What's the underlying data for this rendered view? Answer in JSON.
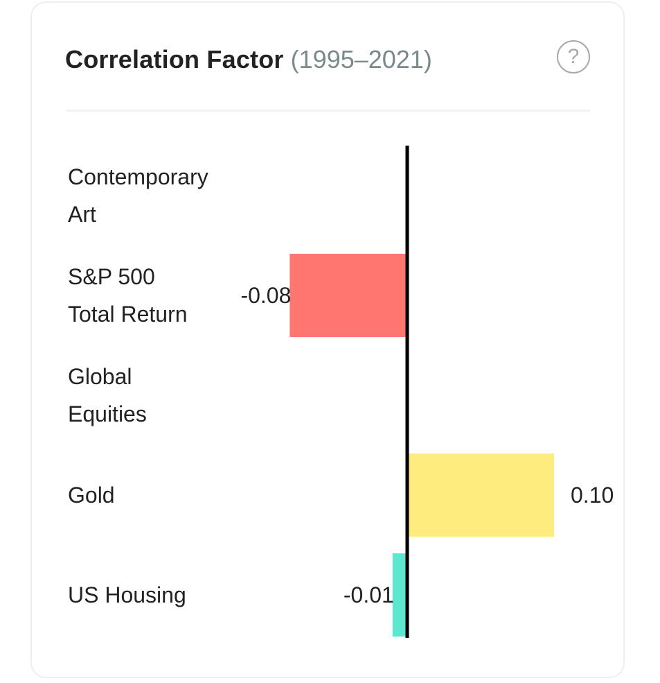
{
  "header": {
    "title": "Correlation Factor",
    "subtitle": "(1995–2021)",
    "help_glyph": "?",
    "help_icon": "question-circle-icon"
  },
  "chart_data": {
    "type": "bar",
    "orientation": "horizontal",
    "title": "Correlation Factor",
    "subtitle": "(1995–2021)",
    "categories": [
      [
        "Contemporary",
        "Art"
      ],
      [
        "S&P 500",
        "Total Return"
      ],
      [
        "Global",
        "Equities"
      ],
      [
        "Gold"
      ],
      [
        "US Housing"
      ]
    ],
    "values": [
      null,
      -0.08,
      null,
      0.1,
      -0.01
    ],
    "value_labels": [
      "",
      "-0.08",
      "",
      "0.10",
      "-0.01"
    ],
    "colors": [
      "#ff7570",
      "#ff7570",
      "#ff7570",
      "#ffec7e",
      "#5ee6cf"
    ],
    "zero_axis_color": "#000000",
    "grid": false,
    "legend": "none"
  }
}
